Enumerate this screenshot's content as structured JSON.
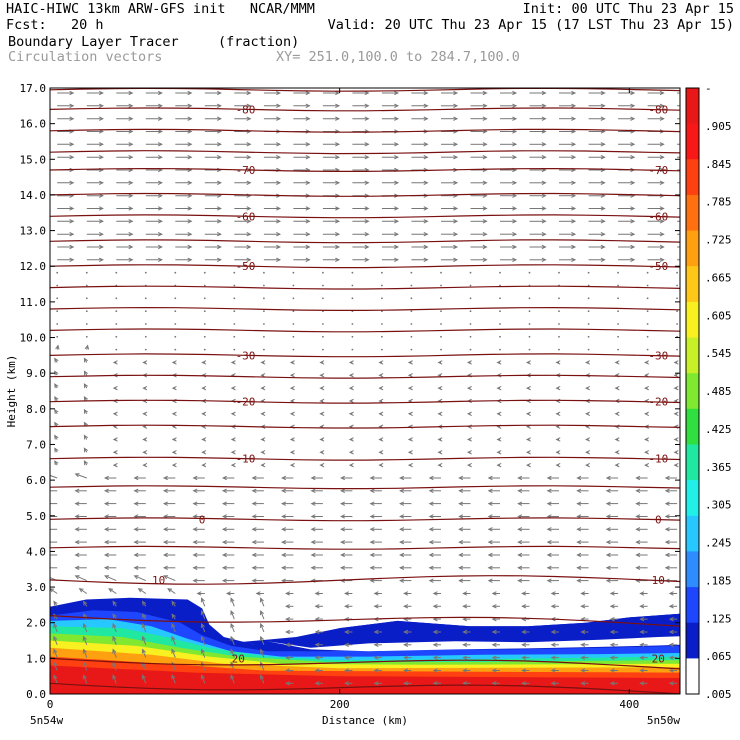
{
  "header": {
    "line1_left": "HAIC-HIWC 13km ARW-GFS init   NCAR/MMM",
    "line1_right": "Init: 00 UTC Thu 23 Apr 15",
    "line2_left": "Fcst:   20 h",
    "line2_right": "Valid: 20 UTC Thu 23 Apr 15 (17 LST Thu 23 Apr 15)",
    "field_name": "Boundary Layer Tracer",
    "field_units": "(fraction)",
    "vector_name": "Circulation vectors",
    "xy_range": "XY= 251.0,100.0 to 284.7,100.0"
  },
  "chart_data": {
    "type": "heatmap",
    "ylabel": "Height (km)",
    "xlabel": "Distance (km)",
    "xlim": [
      0,
      435
    ],
    "ylim": [
      0,
      17
    ],
    "yticks": [
      "0.0",
      "1.0",
      "2.0",
      "3.0",
      "4.0",
      "5.0",
      "6.0",
      "7.0",
      "8.0",
      "9.0",
      "10.0",
      "11.0",
      "12.0",
      "13.0",
      "14.0",
      "15.0",
      "16.0",
      "17.0"
    ],
    "xticks": [
      "0",
      "200",
      "400"
    ],
    "x_end_labels": {
      "left": "5n54w",
      "right": "5n50w"
    },
    "colorbar": {
      "labels": [
        "-",
        ".905",
        ".845",
        ".785",
        ".725",
        ".665",
        ".605",
        ".545",
        ".485",
        ".425",
        ".365",
        ".305",
        ".245",
        ".185",
        ".125",
        ".065",
        ".005"
      ],
      "colors": [
        "#ffffff",
        "#0a1ec8",
        "#1e46ff",
        "#2f8cff",
        "#27c8ff",
        "#20f0e8",
        "#20e8a0",
        "#30e040",
        "#80e830",
        "#c8f028",
        "#f8f020",
        "#ffc818",
        "#ffa010",
        "#ff7010",
        "#ff4010",
        "#f81818",
        "#e81818"
      ]
    },
    "temperature_contours": [
      {
        "label": "-80",
        "height": 16.4
      },
      {
        "label": "-70",
        "height": 14.7
      },
      {
        "label": "-60",
        "height": 13.4
      },
      {
        "label": "-50",
        "height": 12.0
      },
      {
        "label": "-30",
        "height": 9.5
      },
      {
        "label": "-20",
        "height": 8.2
      },
      {
        "label": "-10",
        "height": 6.6
      },
      {
        "label": "0",
        "height": 4.9
      },
      {
        "label": "10",
        "height": 3.2
      },
      {
        "label": "20",
        "height": 1.0
      }
    ],
    "grid": false
  }
}
